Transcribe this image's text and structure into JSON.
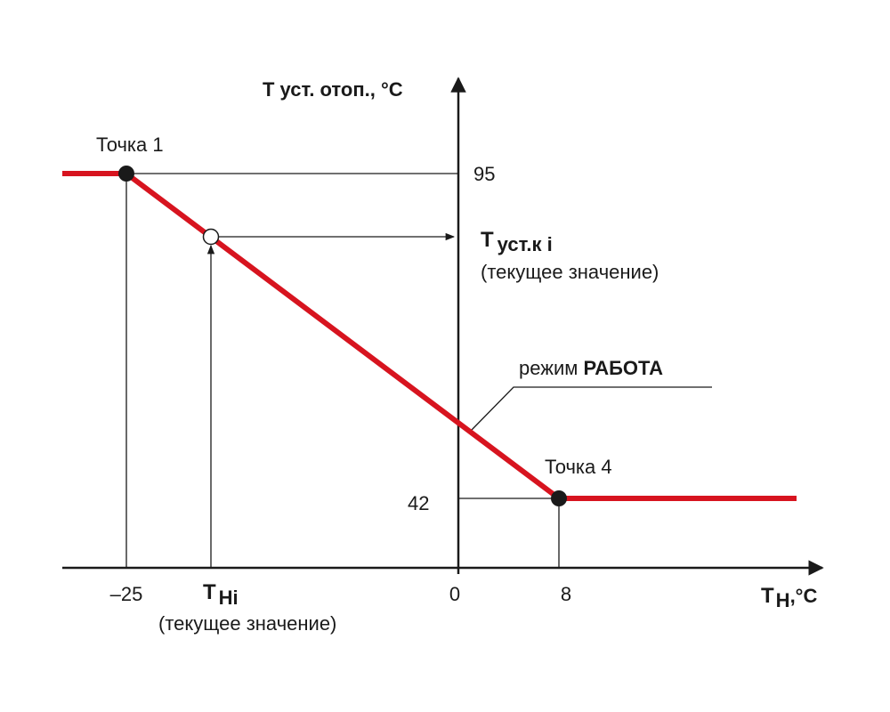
{
  "y_axis": {
    "label": "Т уст. отоп., °С",
    "ticks": [
      "95",
      "42"
    ]
  },
  "x_axis": {
    "label": {
      "main": "Т",
      "sub": "Н",
      "unit": ",°С"
    },
    "ticks": [
      "–25",
      "0",
      "8"
    ]
  },
  "points": [
    {
      "label": "Точка 1"
    },
    {
      "label": "Точка 4"
    }
  ],
  "setpoint_current": {
    "main": "Т",
    "sub": "уст.к i",
    "note": "(текущее значение)"
  },
  "outdoor_current": {
    "main": "Т",
    "sub": "Нi",
    "note": "(текущее значение)"
  },
  "mode": {
    "prefix": "режим",
    "name": "РАБОТА"
  }
}
